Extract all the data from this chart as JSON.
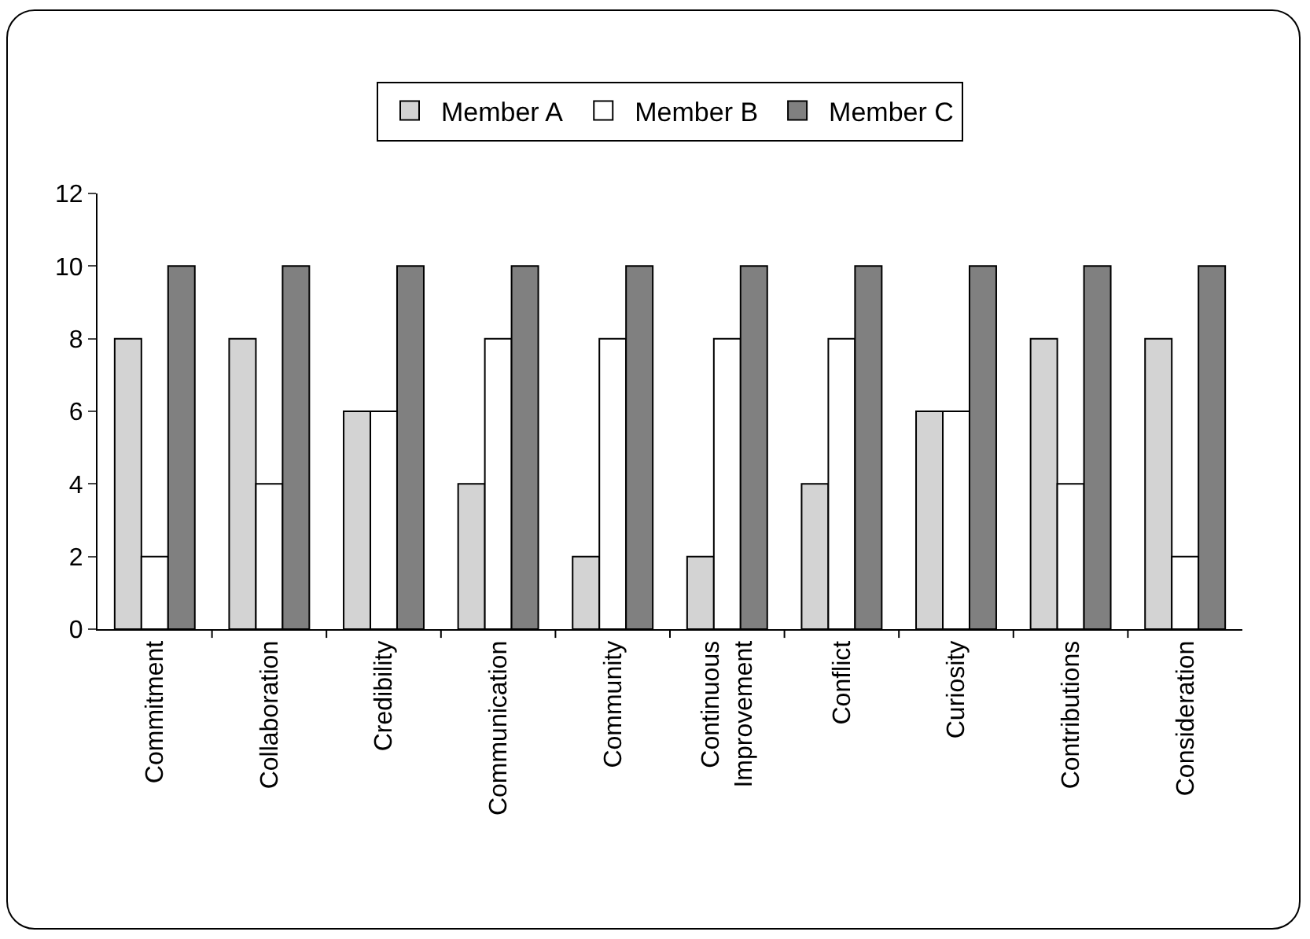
{
  "chart_data": {
    "type": "bar",
    "categories": [
      "Commitment",
      "Collaboration",
      "Credibility",
      "Communication",
      "Community",
      "Continuous Improvement",
      "Conflict",
      "Curiosity",
      "Contributions",
      "Consideration"
    ],
    "series": [
      {
        "name": "Member A",
        "color": "#d3d3d3",
        "values": [
          8,
          8,
          6,
          4,
          2,
          2,
          4,
          6,
          8,
          8
        ]
      },
      {
        "name": "Member B",
        "color": "#ffffff",
        "values": [
          2,
          4,
          6,
          8,
          8,
          8,
          8,
          6,
          4,
          2
        ]
      },
      {
        "name": "Member C",
        "color": "#808080",
        "values": [
          10,
          10,
          10,
          10,
          10,
          10,
          10,
          10,
          10,
          10
        ]
      }
    ],
    "ylim": [
      0,
      12
    ],
    "yticks": [
      0,
      2,
      4,
      6,
      8,
      10,
      12
    ],
    "grid": false,
    "legend": "top"
  }
}
